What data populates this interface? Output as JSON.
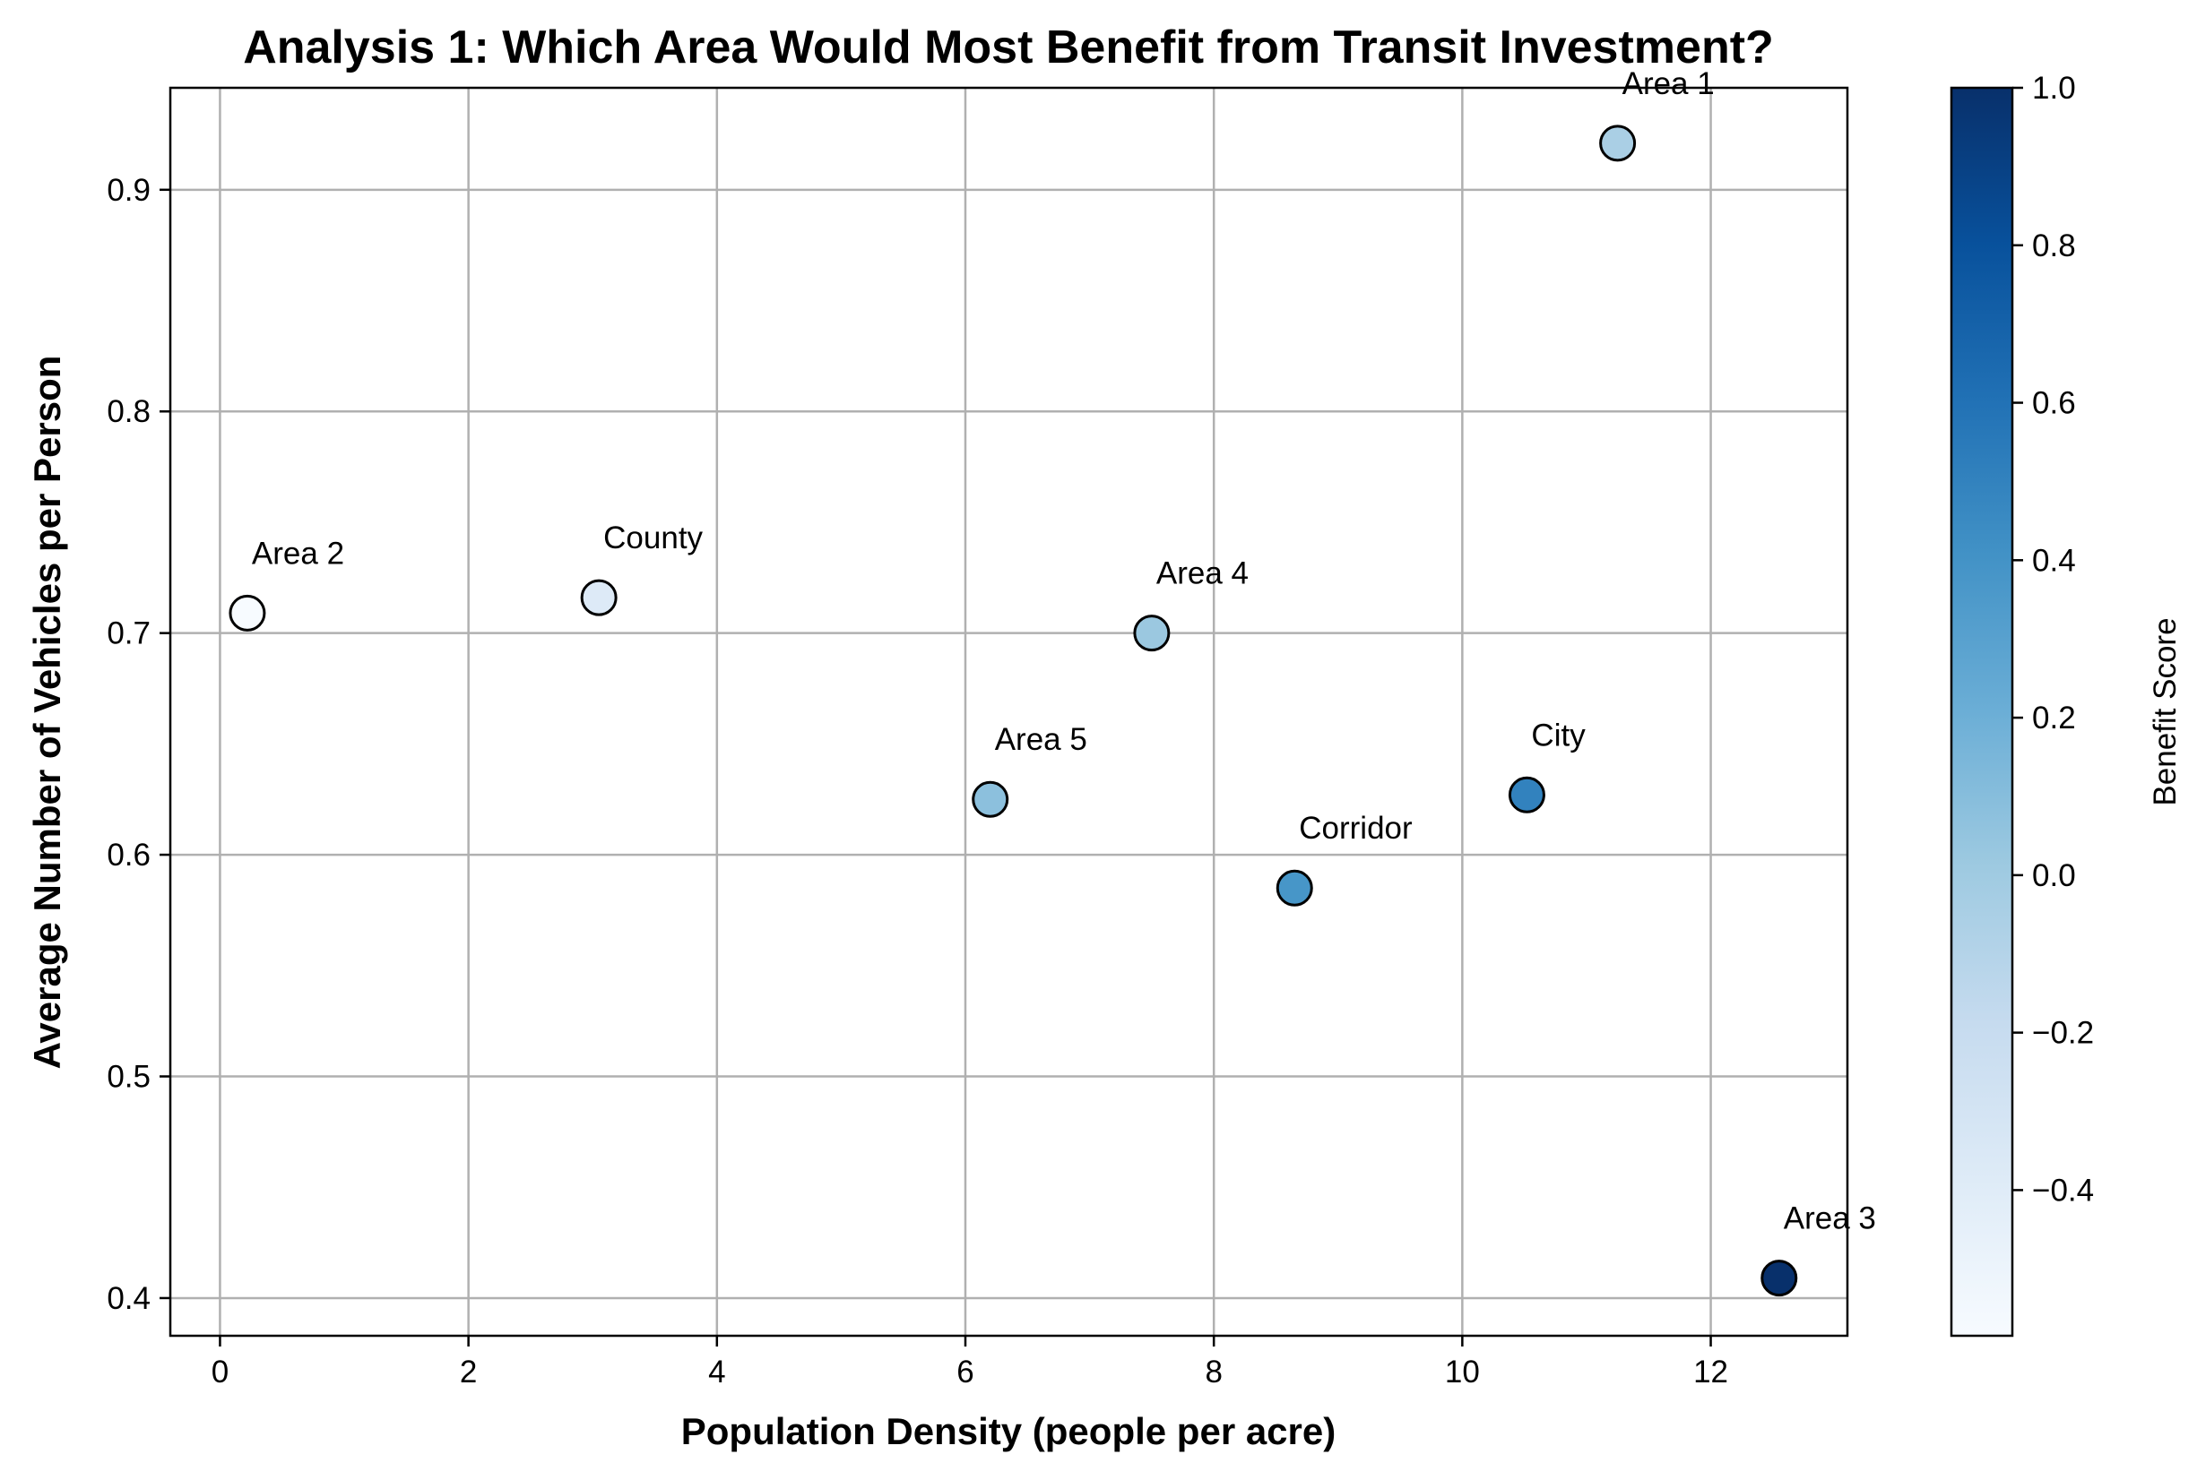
{
  "chart_data": {
    "type": "scatter",
    "title": "Analysis 1: Which Area Would Most Benefit from Transit Investment?",
    "xlabel": "Population Density (people per acre)",
    "ylabel": "Average Number of Vehicles per Person",
    "xlim": [
      -0.4,
      13.1
    ],
    "ylim": [
      0.383,
      0.946
    ],
    "xticks": [
      0,
      2,
      4,
      6,
      8,
      10,
      12
    ],
    "yticks": [
      0.4,
      0.5,
      0.6,
      0.7,
      0.8,
      0.9
    ],
    "xtick_labels": [
      "0",
      "2",
      "4",
      "6",
      "8",
      "10",
      "12"
    ],
    "ytick_labels": [
      "0.4",
      "0.5",
      "0.6",
      "0.7",
      "0.8",
      "0.9"
    ],
    "grid": true,
    "colormap": "Blues",
    "colorbar": {
      "label": "Benefit Score",
      "range": [
        -0.585,
        1.0
      ],
      "ticks": [
        -0.4,
        -0.2,
        0.0,
        0.2,
        0.4,
        0.6,
        0.8,
        1.0
      ],
      "tick_labels": [
        "−0.4",
        "−0.2",
        "0.0",
        "0.2",
        "0.4",
        "0.6",
        "0.8",
        "1.0"
      ]
    },
    "points": [
      {
        "label": "Area 1",
        "x": 11.25,
        "y": 0.921,
        "score": -0.05
      },
      {
        "label": "Area 2",
        "x": 0.22,
        "y": 0.709,
        "score": -0.585
      },
      {
        "label": "County",
        "x": 3.05,
        "y": 0.716,
        "score": -0.38
      },
      {
        "label": "Area 4",
        "x": 7.5,
        "y": 0.7,
        "score": 0.02
      },
      {
        "label": "Area 5",
        "x": 6.2,
        "y": 0.625,
        "score": 0.08
      },
      {
        "label": "Corridor",
        "x": 8.65,
        "y": 0.585,
        "score": 0.38
      },
      {
        "label": "City",
        "x": 10.52,
        "y": 0.627,
        "score": 0.5
      },
      {
        "label": "Area 3",
        "x": 12.55,
        "y": 0.409,
        "score": 1.0
      }
    ]
  }
}
